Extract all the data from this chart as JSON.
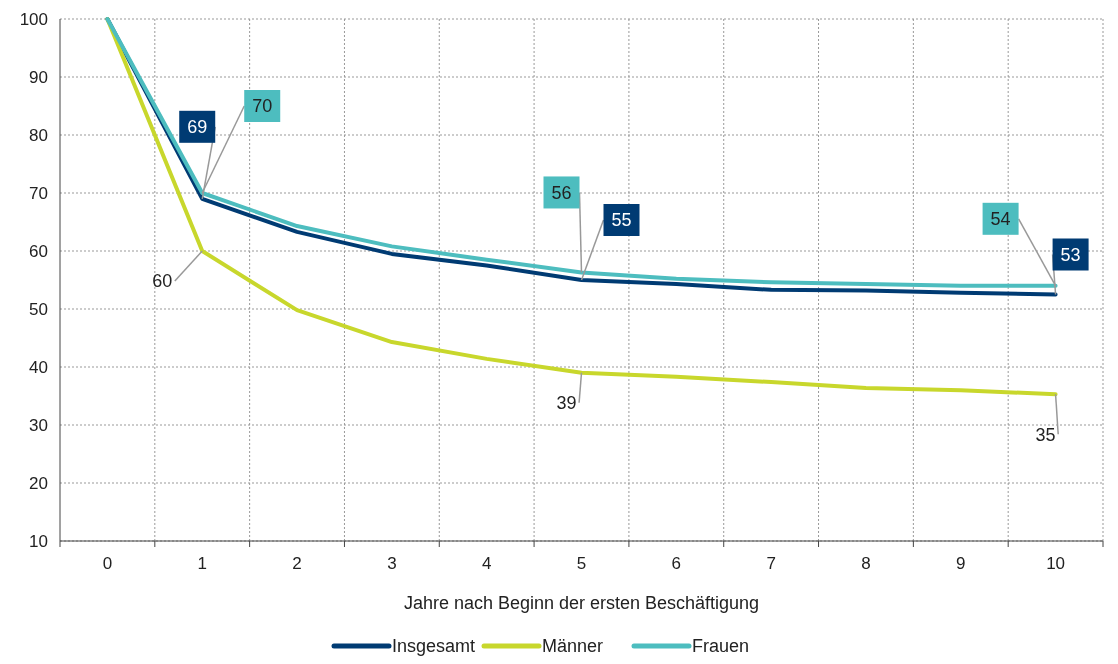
{
  "chart_data": {
    "type": "line",
    "xlabel": "Jahre nach Beginn der ersten Beschäftigung",
    "categories": [
      "0",
      "1",
      "2",
      "3",
      "4",
      "5",
      "6",
      "7",
      "8",
      "9",
      "10"
    ],
    "series": [
      {
        "name": "Insgesamt",
        "color": "#003b73",
        "values": [
          100,
          69,
          63.3,
          59.5,
          57.5,
          55,
          54.3,
          53.3,
          53.2,
          52.8,
          52.5
        ],
        "value_labels": [
          null,
          "69",
          null,
          null,
          null,
          "55",
          null,
          null,
          null,
          null,
          "53"
        ]
      },
      {
        "name": "Männer",
        "color": "#c8d72c",
        "values": [
          100,
          60,
          49.8,
          44.3,
          41.4,
          39,
          38.3,
          37.4,
          36.4,
          36,
          35.3
        ],
        "value_labels": [
          null,
          "60",
          null,
          null,
          null,
          "39",
          null,
          null,
          null,
          null,
          "35"
        ]
      },
      {
        "name": "Frauen",
        "color": "#4dbdbf",
        "values": [
          100,
          70,
          64.3,
          60.8,
          58.5,
          56.3,
          55.2,
          54.6,
          54.3,
          54,
          54
        ],
        "value_labels": [
          null,
          "70",
          null,
          null,
          null,
          "56",
          null,
          null,
          null,
          null,
          "54"
        ]
      }
    ],
    "ylim": [
      10,
      100
    ],
    "yticks": [
      10,
      20,
      30,
      40,
      50,
      60,
      70,
      80,
      90,
      100
    ],
    "grid": true,
    "legend": "bottom",
    "marker": "none",
    "line_style": "solid"
  }
}
